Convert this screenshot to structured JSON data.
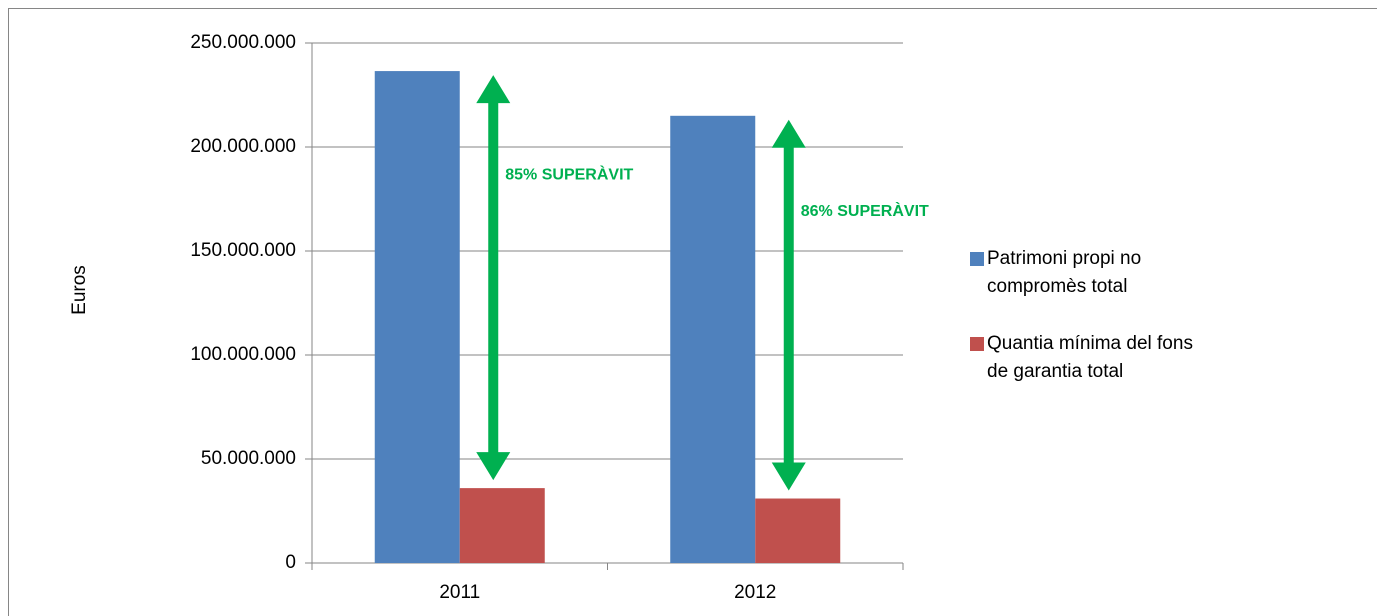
{
  "chart_data": {
    "type": "bar",
    "categories": [
      "2011",
      "2012"
    ],
    "series": [
      {
        "name": "Patrimoni propi no compromès total",
        "color": "#4f81bd",
        "values": [
          236500000,
          215000000
        ]
      },
      {
        "name": "Quantia mínima del fons de garantia total",
        "color": "#c0504d",
        "values": [
          36000000,
          31000000
        ]
      }
    ],
    "ylabel": "Euros",
    "ylim": [
      0,
      250000000
    ],
    "yticks": [
      0,
      {
        "value": 50000000,
        "label": "50.000.000"
      },
      {
        "value": 100000000,
        "label": "100.000.000"
      },
      {
        "value": 150000000,
        "label": "150.000.000"
      },
      {
        "value": 200000000,
        "label": "200.000.000"
      },
      {
        "value": 250000000,
        "label": "250.000.000"
      }
    ],
    "grid": true,
    "legend": "right",
    "annotations": [
      "85% SUPERÀVIT",
      "86% SUPERÀVIT"
    ],
    "annotation_color": "#00b050"
  }
}
